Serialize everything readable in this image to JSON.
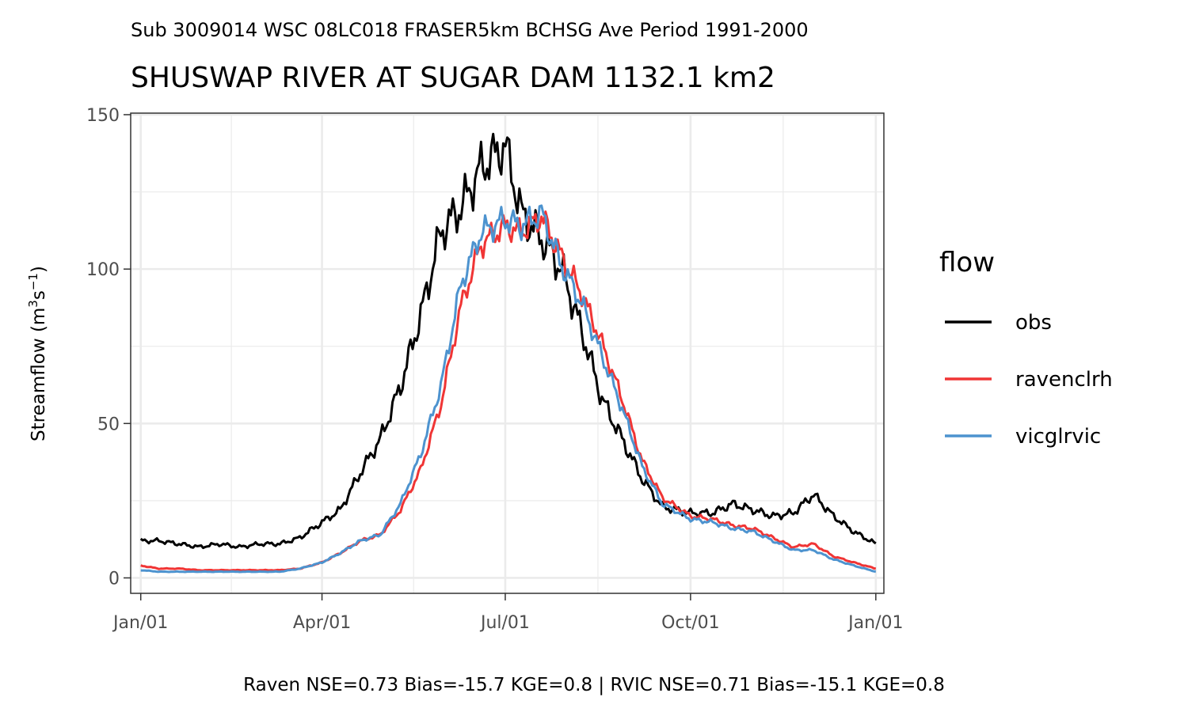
{
  "chart_data": {
    "type": "line",
    "subtitle": "Sub 3009014 WSC 08LC018 FRASER5km BCHSG Ave Period 1991-2000",
    "title": "SHUSWAP RIVER AT SUGAR DAM 1132.1 km2",
    "ylabel": "Streamflow (m3s-1)",
    "xlabel": "",
    "ylim": [
      0,
      150
    ],
    "yticks": [
      0,
      50,
      100,
      150
    ],
    "xlim": [
      "Jan/01",
      "Jan/01"
    ],
    "xticks": [
      "Jan/01",
      "Apr/01",
      "Jul/01",
      "Oct/01",
      "Jan/01"
    ],
    "grid": true,
    "legend": {
      "title": "flow",
      "position": "right"
    },
    "caption": "Raven NSE=0.73 Bias=-15.7 KGE=0.8 | RVIC NSE=0.71 Bias=-15.1 KGE=0.8",
    "x_doy": [
      1,
      10,
      20,
      30,
      40,
      50,
      60,
      70,
      80,
      91,
      100,
      110,
      120,
      130,
      140,
      150,
      160,
      170,
      182,
      190,
      200,
      210,
      220,
      230,
      240,
      250,
      260,
      274,
      285,
      295,
      305,
      315,
      325,
      335,
      345,
      355,
      366
    ],
    "series": [
      {
        "name": "obs",
        "color": "#000000",
        "values": [
          12,
          12,
          11,
          10,
          11,
          10,
          11,
          11,
          13,
          18,
          22,
          34,
          45,
          62,
          85,
          112,
          120,
          133,
          140,
          118,
          110,
          100,
          80,
          58,
          45,
          32,
          23,
          21,
          21,
          24,
          22,
          20,
          21,
          27,
          20,
          15,
          11
        ]
      },
      {
        "name": "ravenclrh",
        "color": "#f03535",
        "values": [
          4,
          3,
          3,
          2.5,
          2.5,
          2.5,
          2.5,
          2.5,
          3,
          5,
          8,
          12,
          14,
          22,
          35,
          56,
          88,
          108,
          114,
          112,
          117,
          104,
          92,
          76,
          58,
          38,
          26,
          20,
          19,
          17,
          16,
          13,
          10,
          11,
          7,
          5,
          3
        ]
      },
      {
        "name": "vicglrvic",
        "color": "#4d93cf",
        "values": [
          2.5,
          2,
          2,
          2,
          2,
          2,
          2,
          2,
          3,
          5,
          8,
          12,
          14,
          24,
          40,
          62,
          95,
          112,
          116,
          114,
          118,
          101,
          89,
          72,
          55,
          36,
          24,
          19,
          18,
          16,
          15,
          12,
          9,
          9,
          6,
          4,
          2
        ]
      }
    ]
  }
}
